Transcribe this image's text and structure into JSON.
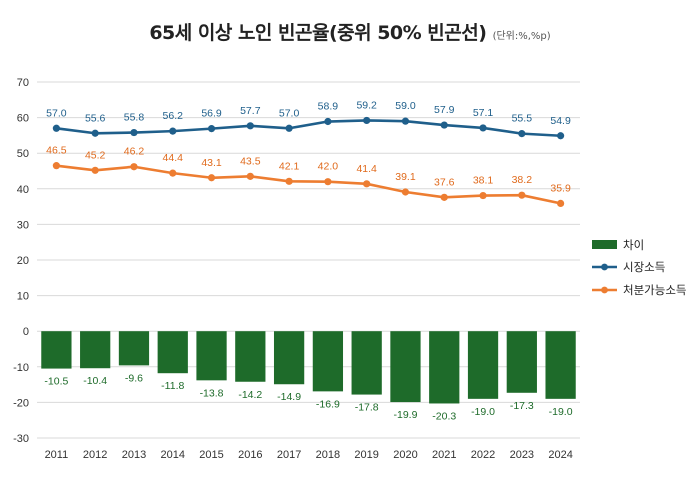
{
  "chart_data": {
    "type": "bar",
    "title": "65세 이상 노인 빈곤율(중위 50% 빈곤선)",
    "subtitle": "(단위:%,%p)",
    "categories": [
      "2011",
      "2012",
      "2013",
      "2014",
      "2015",
      "2016",
      "2017",
      "2018",
      "2019",
      "2020",
      "2021",
      "2022",
      "2023",
      "2024"
    ],
    "ylim": [
      -30,
      70
    ],
    "yticks": [
      70,
      60,
      50,
      40,
      30,
      20,
      10,
      0,
      -10,
      -20,
      -30
    ],
    "grid": true,
    "legend_position": "right",
    "series": [
      {
        "name": "차이",
        "kind": "bar",
        "color": "#1e6b2a",
        "values": [
          -10.5,
          -10.4,
          -9.6,
          -11.8,
          -13.8,
          -14.2,
          -14.9,
          -16.9,
          -17.8,
          -19.9,
          -20.3,
          -19.0,
          -17.3,
          -19.0
        ],
        "labels": [
          "-10.5",
          "-10.4",
          "-9.6",
          "-11.8",
          "-13.8",
          "-14.2",
          "-14.9",
          "-16.9",
          "-17.8",
          "-19.9",
          "-20.3",
          "-19.0",
          "-17.3",
          "-19.0"
        ]
      },
      {
        "name": "시장소득",
        "kind": "line",
        "color": "#1f5f8b",
        "label_color": "#1f5f8b",
        "values": [
          57.0,
          55.6,
          55.8,
          56.2,
          56.9,
          57.7,
          57.0,
          58.9,
          59.2,
          59.0,
          57.9,
          57.1,
          55.5,
          54.9
        ],
        "labels": [
          "57.0",
          "55.6",
          "55.8",
          "56.2",
          "56.9",
          "57.7",
          "57.0",
          "58.9",
          "59.2",
          "59.0",
          "57.9",
          "57.1",
          "55.5",
          "54.9"
        ]
      },
      {
        "name": "처분가능소득",
        "kind": "line",
        "color": "#ed7d31",
        "label_color": "#e06a1c",
        "values": [
          46.5,
          45.2,
          46.2,
          44.4,
          43.1,
          43.5,
          42.1,
          42.0,
          41.4,
          39.1,
          37.6,
          38.1,
          38.2,
          35.9
        ],
        "labels": [
          "46.5",
          "45.2",
          "46.2",
          "44.4",
          "43.1",
          "43.5",
          "42.1",
          "42.0",
          "41.4",
          "39.1",
          "37.6",
          "38.1",
          "38.2",
          "35.9"
        ]
      }
    ]
  }
}
